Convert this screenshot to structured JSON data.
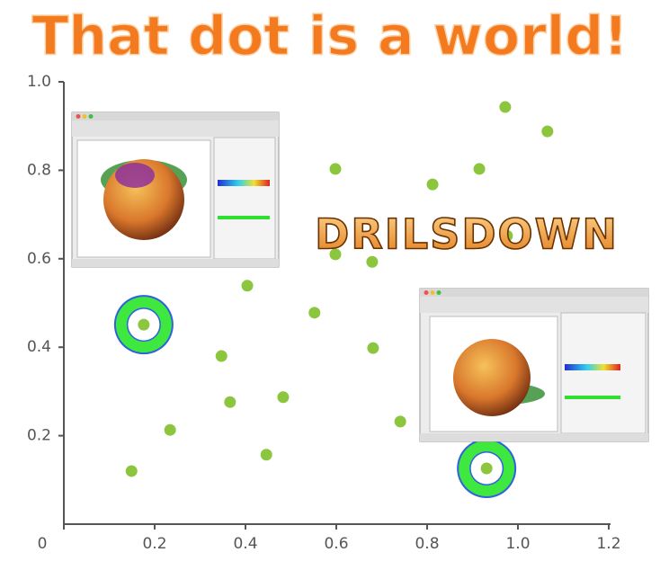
{
  "chart_data": {
    "type": "scatter",
    "title": "That dot is a world!",
    "annotation": "DRILSDOWN",
    "x": [
      0.149,
      0.234,
      0.176,
      0.347,
      0.366,
      0.404,
      0.446,
      0.483,
      0.552,
      0.598,
      0.598,
      0.679,
      0.681,
      0.741,
      0.812,
      0.915,
      0.972,
      0.976,
      1.065,
      0.931
    ],
    "values": [
      0.12,
      0.213,
      0.451,
      0.38,
      0.276,
      0.539,
      0.157,
      0.287,
      0.478,
      0.803,
      0.61,
      0.593,
      0.398,
      0.232,
      0.768,
      0.803,
      0.943,
      0.652,
      0.888,
      0.126
    ],
    "color": "#8cc63f",
    "highlighted": [
      2,
      19
    ],
    "xlim": [
      0,
      1.2
    ],
    "ylim": [
      0,
      1.0
    ],
    "xticks": [
      0,
      0.2,
      0.4,
      0.6,
      0.8,
      {
        "value": 1,
        "label": "1.0"
      },
      1.2
    ],
    "yticks": [
      0.2,
      0.4,
      0.6,
      0.8,
      {
        "value": 1,
        "label": "1.0"
      }
    ]
  }
}
